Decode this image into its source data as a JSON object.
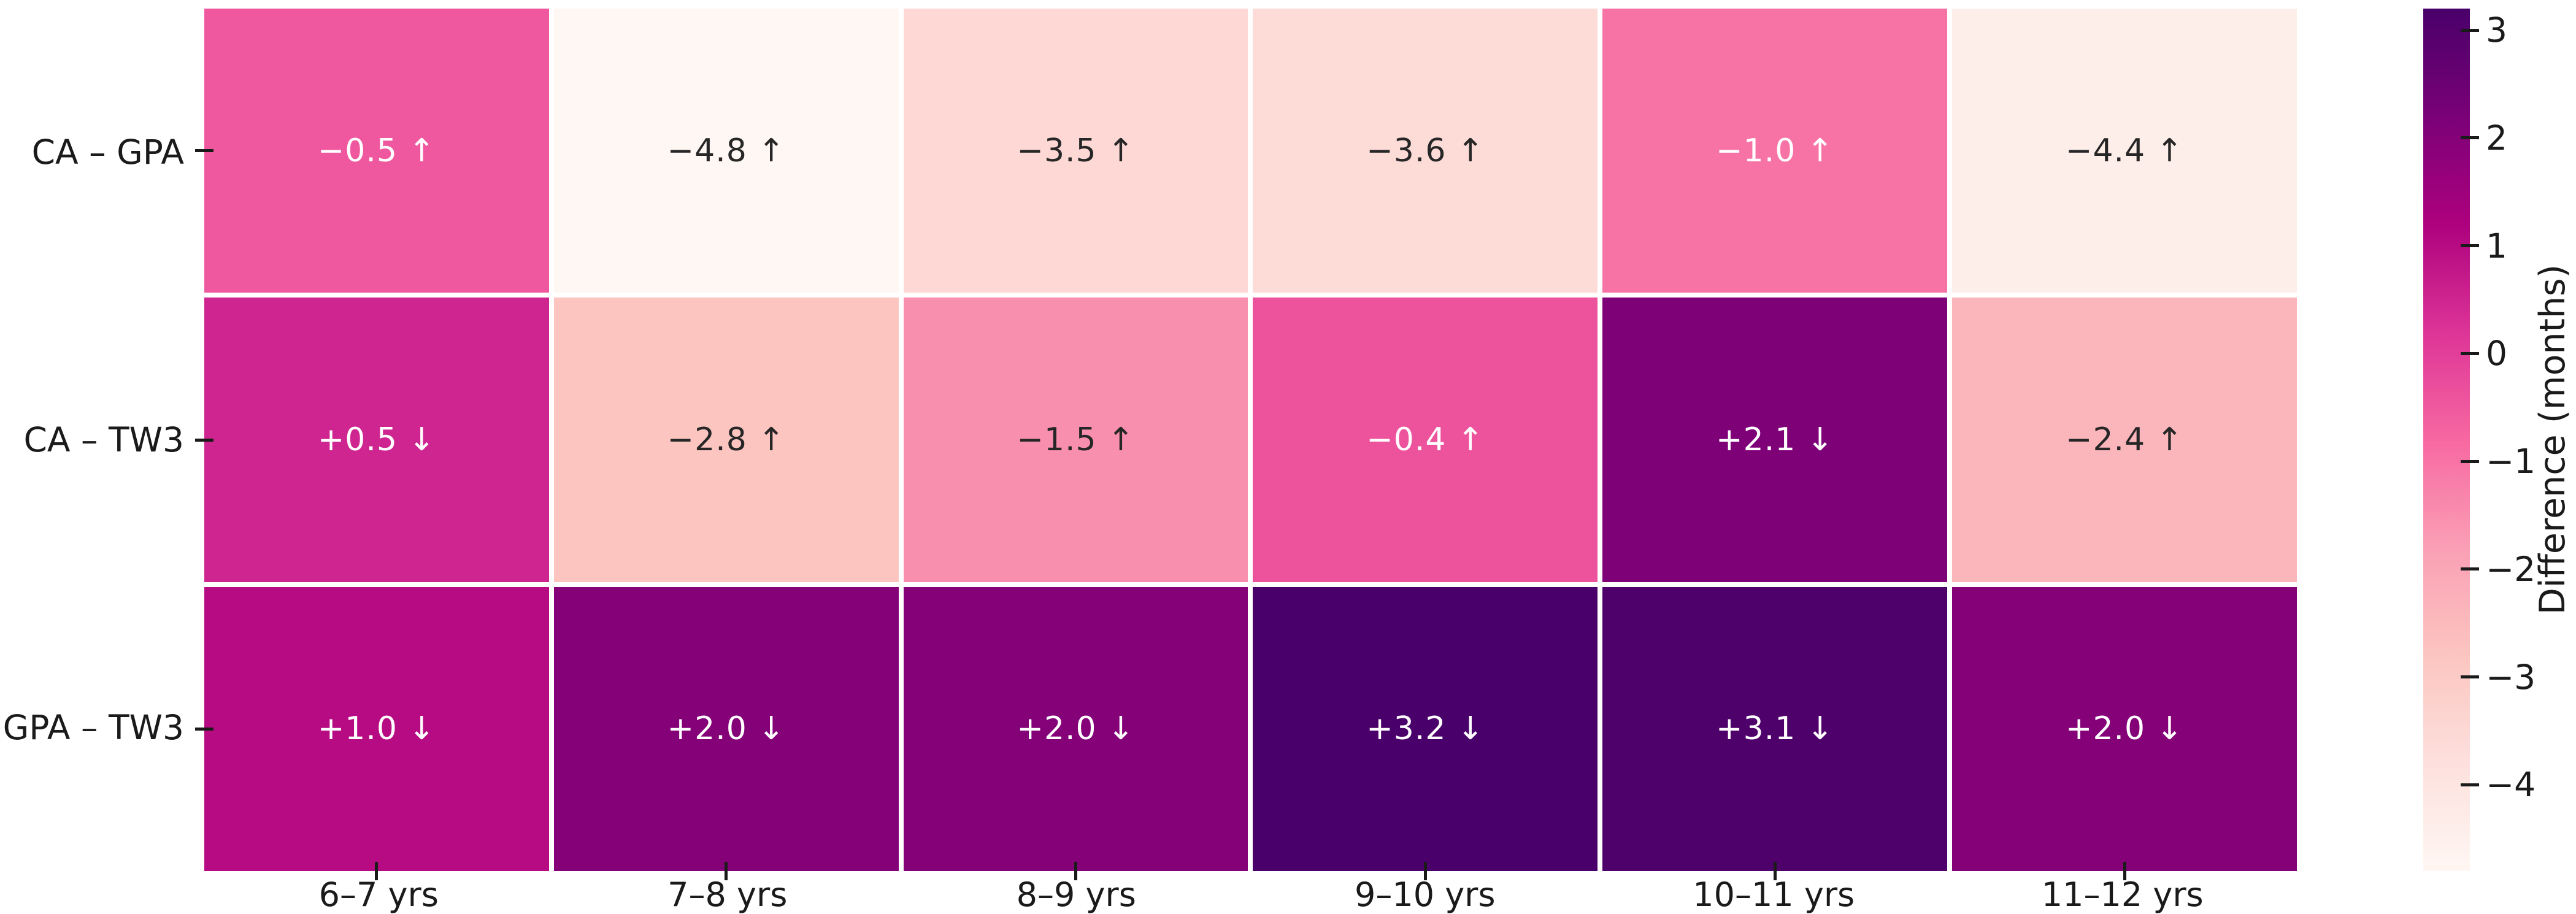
{
  "figure": {
    "background": "#ffffff",
    "axis_text_color": "#1a1a1a",
    "grid_line_color": "#ffffff"
  },
  "chart_data": {
    "type": "heatmap",
    "title": "",
    "xlabel": "",
    "ylabel": "",
    "x_categories": [
      "6–7 yrs",
      "7–8 yrs",
      "8–9 yrs",
      "9–10 yrs",
      "10–11 yrs",
      "11–12 yrs"
    ],
    "y_categories": [
      "CA – GPA",
      "CA – TW3",
      "GPA – TW3"
    ],
    "series": [
      {
        "name": "CA – GPA",
        "values": [
          -0.5,
          -4.8,
          -3.5,
          -3.6,
          -1.0,
          -4.4
        ],
        "labels": [
          "−0.5 ↑",
          "−4.8 ↑",
          "−3.5 ↑",
          "−3.6 ↑",
          "−1.0 ↑",
          "−4.4 ↑"
        ]
      },
      {
        "name": "CA – TW3",
        "values": [
          0.5,
          -2.8,
          -1.5,
          -0.4,
          2.1,
          -2.4
        ],
        "labels": [
          "+0.5 ↓",
          "−2.8 ↑",
          "−1.5 ↑",
          "−0.4 ↑",
          "+2.1 ↓",
          "−2.4 ↑"
        ]
      },
      {
        "name": "GPA – TW3",
        "values": [
          1.0,
          2.0,
          2.0,
          3.2,
          3.1,
          2.0
        ],
        "labels": [
          "+1.0 ↓",
          "+2.0 ↓",
          "+2.0 ↓",
          "+3.2 ↓",
          "+3.1 ↓",
          "+2.0 ↓"
        ]
      }
    ],
    "vmin": -4.8,
    "vmax": 3.2,
    "grid_on": false,
    "colorbar": {
      "label": "Difference (months)",
      "position": "right",
      "ticks": [
        {
          "value": 3,
          "label": "3"
        },
        {
          "value": 2,
          "label": "2"
        },
        {
          "value": 1,
          "label": "1"
        },
        {
          "value": 0,
          "label": "0"
        },
        {
          "value": -1,
          "label": "−1"
        },
        {
          "value": -2,
          "label": "−2"
        },
        {
          "value": -3,
          "label": "−3"
        },
        {
          "value": -4,
          "label": "−4"
        }
      ]
    },
    "colormap": {
      "name": "RdPu",
      "stops": [
        {
          "t": 0.0,
          "color": "#fff7f3"
        },
        {
          "t": 0.125,
          "color": "#fde0dd"
        },
        {
          "t": 0.25,
          "color": "#fcc5c0"
        },
        {
          "t": 0.375,
          "color": "#fa9fb5"
        },
        {
          "t": 0.5,
          "color": "#f768a1"
        },
        {
          "t": 0.625,
          "color": "#dd3497"
        },
        {
          "t": 0.75,
          "color": "#ae017e"
        },
        {
          "t": 0.875,
          "color": "#7a0177"
        },
        {
          "t": 1.0,
          "color": "#49006a"
        }
      ]
    },
    "annotation_text_colors": {
      "on_light": "#262626",
      "on_dark": "#ffffff"
    },
    "luminance_threshold": 0.408
  }
}
